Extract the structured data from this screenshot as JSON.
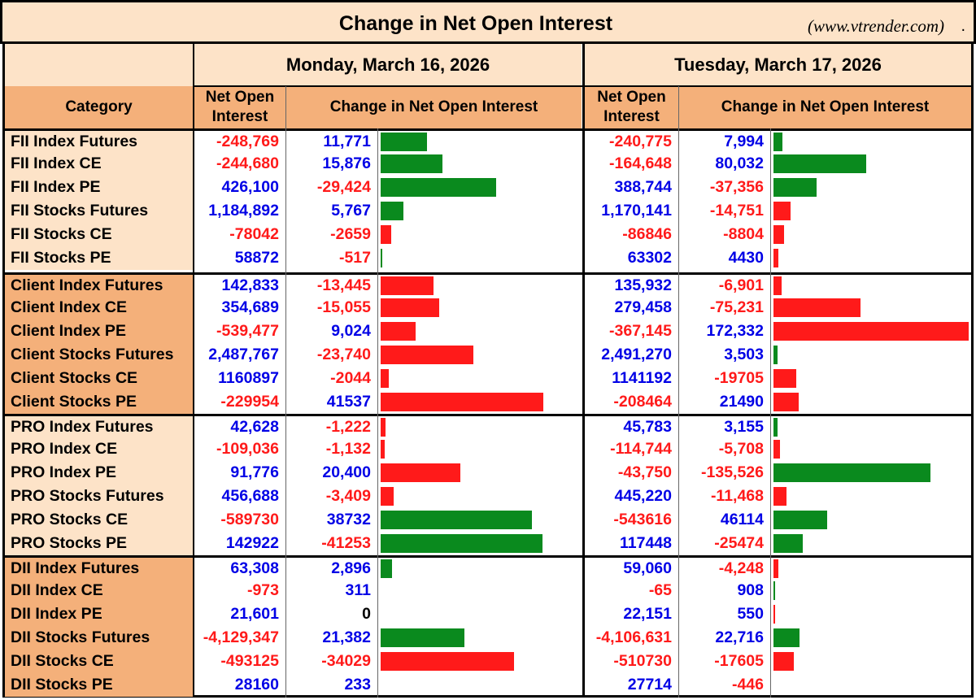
{
  "title": "Change in Net Open Interest",
  "site": "(www.vtrender.com)",
  "site_dot": ".",
  "dates": [
    "Monday, March 16, 2026",
    "Tuesday, March 17, 2026"
  ],
  "headers": {
    "category": "Category",
    "net_oi_line1": "Net Open",
    "net_oi_line2": "Interest",
    "change": "Change in Net Open Interest"
  },
  "colors": {
    "header_light": "#fde3c8",
    "header_dark": "#f4b07a",
    "label_light": "#fde3c8",
    "label_dark": "#f4b07a",
    "positive_text": "#0000e6",
    "negative_text": "#ff1a1a",
    "bar_green": "#0a8a1e",
    "bar_red": "#ff1a1a"
  },
  "groups": [
    {
      "name": "FII",
      "rows": [
        {
          "category": "FII Index Futures",
          "mon": {
            "noi": "-248,769",
            "chg": "11,771",
            "chg_value": 11771,
            "bar": "green"
          },
          "tue": {
            "noi": "-240,775",
            "chg": "7,994",
            "chg_value": 7994,
            "bar": "green"
          }
        },
        {
          "category": "FII Index CE",
          "mon": {
            "noi": "-244,680",
            "chg": "15,876",
            "chg_value": 15876,
            "bar": "green"
          },
          "tue": {
            "noi": "-164,648",
            "chg": "80,032",
            "chg_value": 80032,
            "bar": "green"
          }
        },
        {
          "category": "FII Index PE",
          "mon": {
            "noi": "426,100",
            "chg": "-29,424",
            "chg_value": -29424,
            "bar": "green"
          },
          "tue": {
            "noi": "388,744",
            "chg": "-37,356",
            "chg_value": -37356,
            "bar": "green"
          }
        },
        {
          "category": "FII Stocks Futures",
          "mon": {
            "noi": "1,184,892",
            "chg": "5,767",
            "chg_value": 5767,
            "bar": "green"
          },
          "tue": {
            "noi": "1,170,141",
            "chg": "-14,751",
            "chg_value": -14751,
            "bar": "red"
          }
        },
        {
          "category": "FII Stocks CE",
          "mon": {
            "noi": "-78042",
            "chg": "-2659",
            "chg_value": -2659,
            "bar": "red"
          },
          "tue": {
            "noi": "-86846",
            "chg": "-8804",
            "chg_value": -8804,
            "bar": "red"
          }
        },
        {
          "category": "FII Stocks PE",
          "mon": {
            "noi": "58872",
            "chg": "-517",
            "chg_value": -517,
            "bar": "green"
          },
          "tue": {
            "noi": "63302",
            "chg": "4430",
            "chg_value": 4430,
            "bar": "red"
          }
        }
      ]
    },
    {
      "name": "Client",
      "rows": [
        {
          "category": "Client Index Futures",
          "mon": {
            "noi": "142,833",
            "chg": "-13,445",
            "chg_value": -13445,
            "bar": "red"
          },
          "tue": {
            "noi": "135,932",
            "chg": "-6,901",
            "chg_value": -6901,
            "bar": "red"
          }
        },
        {
          "category": "Client Index CE",
          "mon": {
            "noi": "354,689",
            "chg": "-15,055",
            "chg_value": -15055,
            "bar": "red"
          },
          "tue": {
            "noi": "279,458",
            "chg": "-75,231",
            "chg_value": -75231,
            "bar": "red"
          }
        },
        {
          "category": "Client Index PE",
          "mon": {
            "noi": "-539,477",
            "chg": "9,024",
            "chg_value": 9024,
            "bar": "red"
          },
          "tue": {
            "noi": "-367,145",
            "chg": "172,332",
            "chg_value": 172332,
            "bar": "red"
          }
        },
        {
          "category": "Client Stocks Futures",
          "mon": {
            "noi": "2,487,767",
            "chg": "-23,740",
            "chg_value": -23740,
            "bar": "red"
          },
          "tue": {
            "noi": "2,491,270",
            "chg": "3,503",
            "chg_value": 3503,
            "bar": "green"
          }
        },
        {
          "category": "Client Stocks CE",
          "mon": {
            "noi": "1160897",
            "chg": "-2044",
            "chg_value": -2044,
            "bar": "red"
          },
          "tue": {
            "noi": "1141192",
            "chg": "-19705",
            "chg_value": -19705,
            "bar": "red"
          }
        },
        {
          "category": "Client Stocks PE",
          "mon": {
            "noi": "-229954",
            "chg": "41537",
            "chg_value": 41537,
            "bar": "red"
          },
          "tue": {
            "noi": "-208464",
            "chg": "21490",
            "chg_value": 21490,
            "bar": "red"
          }
        }
      ]
    },
    {
      "name": "PRO",
      "rows": [
        {
          "category": "PRO Index Futures",
          "mon": {
            "noi": "42,628",
            "chg": "-1,222",
            "chg_value": -1222,
            "bar": "red"
          },
          "tue": {
            "noi": "45,783",
            "chg": "3,155",
            "chg_value": 3155,
            "bar": "green"
          }
        },
        {
          "category": "PRO Index CE",
          "mon": {
            "noi": "-109,036",
            "chg": "-1,132",
            "chg_value": -1132,
            "bar": "red"
          },
          "tue": {
            "noi": "-114,744",
            "chg": "-5,708",
            "chg_value": -5708,
            "bar": "red"
          }
        },
        {
          "category": "PRO Index PE",
          "mon": {
            "noi": "91,776",
            "chg": "20,400",
            "chg_value": 20400,
            "bar": "red"
          },
          "tue": {
            "noi": "-43,750",
            "chg": "-135,526",
            "chg_value": -135526,
            "bar": "green"
          }
        },
        {
          "category": "PRO Stocks Futures",
          "mon": {
            "noi": "456,688",
            "chg": "-3,409",
            "chg_value": -3409,
            "bar": "red"
          },
          "tue": {
            "noi": "445,220",
            "chg": "-11,468",
            "chg_value": -11468,
            "bar": "red"
          }
        },
        {
          "category": "PRO Stocks CE",
          "mon": {
            "noi": "-589730",
            "chg": "38732",
            "chg_value": 38732,
            "bar": "green"
          },
          "tue": {
            "noi": "-543616",
            "chg": "46114",
            "chg_value": 46114,
            "bar": "green"
          }
        },
        {
          "category": "PRO Stocks PE",
          "mon": {
            "noi": "142922",
            "chg": "-41253",
            "chg_value": -41253,
            "bar": "green"
          },
          "tue": {
            "noi": "117448",
            "chg": "-25474",
            "chg_value": -25474,
            "bar": "green"
          }
        }
      ]
    },
    {
      "name": "DII",
      "rows": [
        {
          "category": "DII Index Futures",
          "mon": {
            "noi": "63,308",
            "chg": "2,896",
            "chg_value": 2896,
            "bar": "green"
          },
          "tue": {
            "noi": "59,060",
            "chg": "-4,248",
            "chg_value": -4248,
            "bar": "red"
          }
        },
        {
          "category": "DII Index CE",
          "mon": {
            "noi": "-973",
            "chg": "311",
            "chg_value": 311,
            "bar": "none"
          },
          "tue": {
            "noi": "-65",
            "chg": "908",
            "chg_value": 908,
            "bar": "green"
          }
        },
        {
          "category": "DII Index PE",
          "mon": {
            "noi": "21,601",
            "chg": "0",
            "chg_value": 0,
            "bar": "none"
          },
          "tue": {
            "noi": "22,151",
            "chg": "550",
            "chg_value": 550,
            "bar": "red"
          }
        },
        {
          "category": "DII Stocks Futures",
          "mon": {
            "noi": "-4,129,347",
            "chg": "21,382",
            "chg_value": 21382,
            "bar": "green"
          },
          "tue": {
            "noi": "-4,106,631",
            "chg": "22,716",
            "chg_value": 22716,
            "bar": "green"
          }
        },
        {
          "category": "DII Stocks CE",
          "mon": {
            "noi": "-493125",
            "chg": "-34029",
            "chg_value": -34029,
            "bar": "red"
          },
          "tue": {
            "noi": "-510730",
            "chg": "-17605",
            "chg_value": -17605,
            "bar": "red"
          }
        },
        {
          "category": "DII Stocks PE",
          "mon": {
            "noi": "28160",
            "chg": "233",
            "chg_value": 233,
            "bar": "none"
          },
          "tue": {
            "noi": "27714",
            "chg": "-446",
            "chg_value": -446,
            "bar": "none"
          }
        }
      ]
    }
  ]
}
